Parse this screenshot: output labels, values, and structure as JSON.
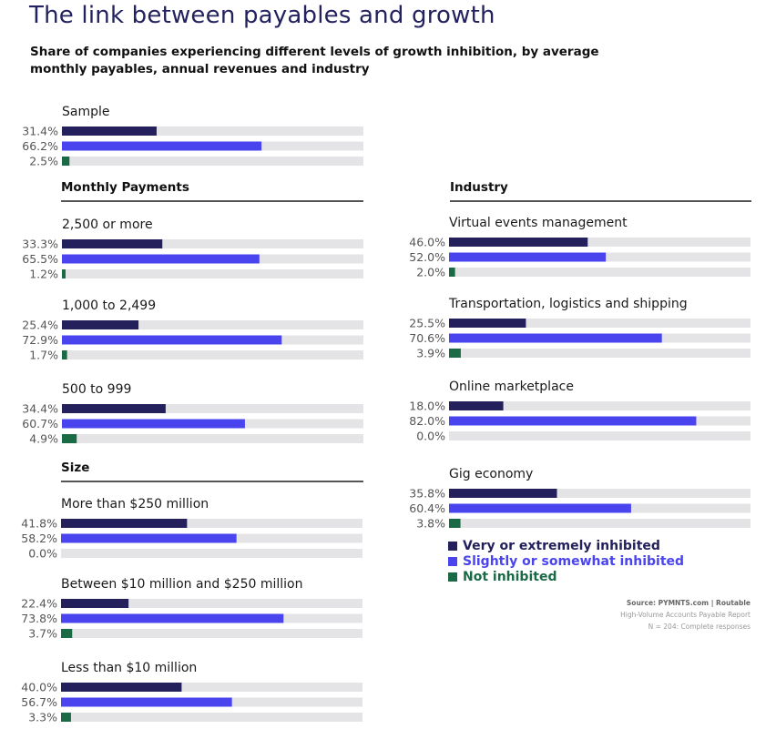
{
  "title": "The link between payables and growth",
  "subtitle": "Share of companies experiencing different levels of growth inhibition, by average monthly payables, annual revenues and industry",
  "sections": {
    "monthly": "Monthly Payments",
    "size": "Size",
    "industry": "Industry"
  },
  "legend": [
    {
      "label": "Very or extremely inhibited",
      "color": "#23205c"
    },
    {
      "label": "Slightly or somewhat inhibited",
      "color": "#4a44ee"
    },
    {
      "label": "Not inhibited",
      "color": "#1a6a45"
    }
  ],
  "source": {
    "line1_bold": "Source: PYMNTS.com  |  Routable",
    "line2": "High-Volume Accounts Payable Report",
    "line3": "N = 204: Complete responses"
  },
  "chart_data": {
    "type": "bar",
    "orientation": "horizontal",
    "unit": "%",
    "xlim": [
      0,
      100
    ],
    "series_names": [
      "Very or extremely inhibited",
      "Slightly or somewhat inhibited",
      "Not inhibited"
    ],
    "colors": [
      "#23205c",
      "#4a44ee",
      "#1a6a45"
    ],
    "track_color": "#e4e4e6",
    "groups": [
      {
        "section": "",
        "label": "Sample",
        "values": [
          31.4,
          66.2,
          2.5
        ],
        "labels": [
          "31.4%",
          "66.2%",
          "2.5%"
        ]
      },
      {
        "section": "Monthly Payments",
        "label": "2,500 or more",
        "values": [
          33.3,
          65.5,
          1.2
        ],
        "labels": [
          "33.3%",
          "65.5%",
          "1.2%"
        ]
      },
      {
        "section": "Monthly Payments",
        "label": "1,000 to 2,499",
        "values": [
          25.4,
          72.9,
          1.7
        ],
        "labels": [
          "25.4%",
          "72.9%",
          "1.7%"
        ]
      },
      {
        "section": "Monthly Payments",
        "label": "500 to 999",
        "values": [
          34.4,
          60.7,
          4.9
        ],
        "labels": [
          "34.4%",
          "60.7%",
          "4.9%"
        ]
      },
      {
        "section": "Size",
        "label": "More than $250 million",
        "values": [
          41.8,
          58.2,
          0.0
        ],
        "labels": [
          "41.8%",
          "58.2%",
          "0.0%"
        ]
      },
      {
        "section": "Size",
        "label": "Between $10 million and $250 million",
        "values": [
          22.4,
          73.8,
          3.7
        ],
        "labels": [
          "22.4%",
          "73.8%",
          "3.7%"
        ]
      },
      {
        "section": "Size",
        "label": "Less than $10 million",
        "values": [
          40.0,
          56.7,
          3.3
        ],
        "labels": [
          "40.0%",
          "56.7%",
          "3.3%"
        ]
      },
      {
        "section": "Industry",
        "label": "Virtual events management",
        "values": [
          46.0,
          52.0,
          2.0
        ],
        "labels": [
          "46.0%",
          "52.0%",
          "2.0%"
        ]
      },
      {
        "section": "Industry",
        "label": "Transportation, logistics and shipping",
        "values": [
          25.5,
          70.6,
          3.9
        ],
        "labels": [
          "25.5%",
          "70.6%",
          "3.9%"
        ]
      },
      {
        "section": "Industry",
        "label": "Online marketplace",
        "values": [
          18.0,
          82.0,
          0.0
        ],
        "labels": [
          "18.0%",
          "82.0%",
          "0.0%"
        ]
      },
      {
        "section": "Industry",
        "label": "Gig economy",
        "values": [
          35.8,
          60.4,
          3.8
        ],
        "labels": [
          "35.8%",
          "60.4%",
          "3.8%"
        ]
      }
    ]
  }
}
